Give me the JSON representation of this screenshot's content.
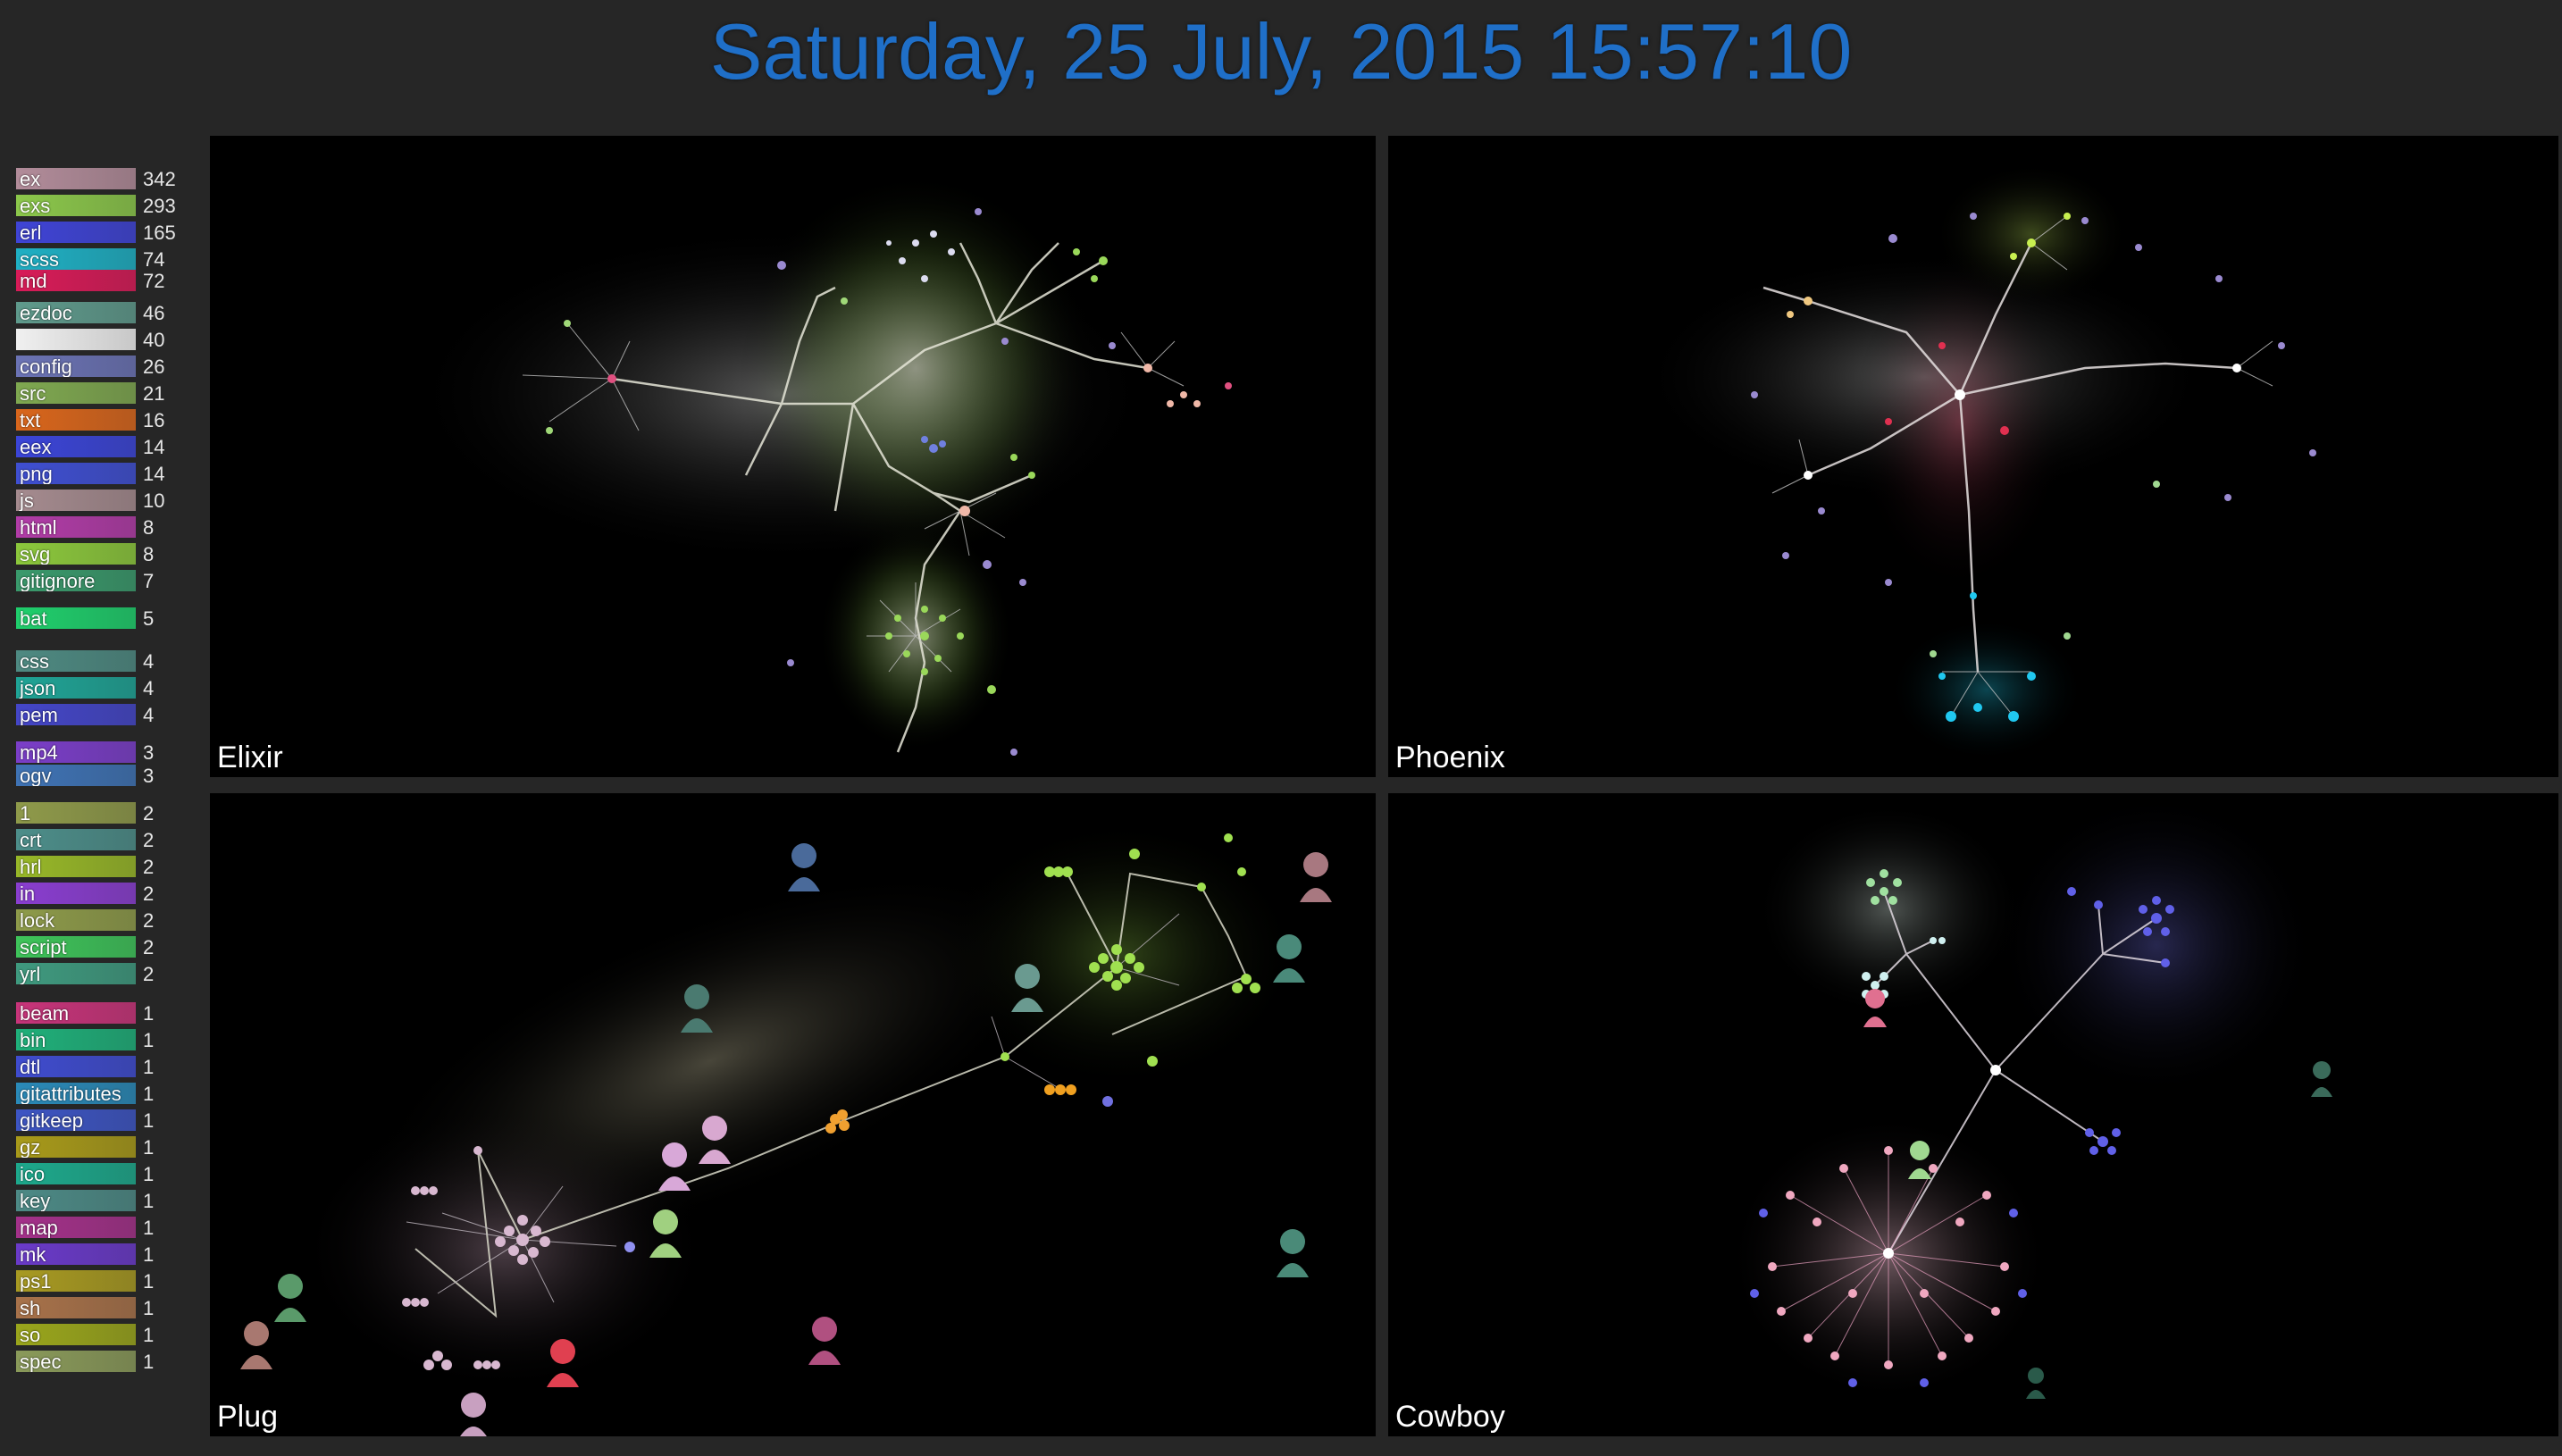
{
  "header": {
    "datetime": "Saturday, 25 July, 2015 15:57:10"
  },
  "colors": {
    "title": "#1f6fc8",
    "background": "#262626",
    "panel": "#000000"
  },
  "legend": [
    {
      "ext": "ex",
      "count": "342",
      "color": "#b28c9a"
    },
    {
      "ext": "exs",
      "count": "293",
      "color": "#8cc84b"
    },
    {
      "ext": "erl",
      "count": "165",
      "color": "#3f44d6"
    },
    {
      "ext": "scss",
      "count": "74",
      "color": "#1fb0c4"
    },
    {
      "ext": "md",
      "count": "72",
      "color": "#d81b58"
    },
    {
      "ext": "ezdoc",
      "count": "46",
      "color": "#5f9a8c"
    },
    {
      "ext": "",
      "count": "40",
      "color": "#f0f0f0"
    },
    {
      "ext": "config",
      "count": "26",
      "color": "#6b73b5"
    },
    {
      "ext": "src",
      "count": "21",
      "color": "#7fa850"
    },
    {
      "ext": "txt",
      "count": "16",
      "color": "#d9661c"
    },
    {
      "ext": "eex",
      "count": "14",
      "color": "#3b45d8"
    },
    {
      "ext": "png",
      "count": "14",
      "color": "#3f4fd2"
    },
    {
      "ext": "js",
      "count": "10",
      "color": "#a58b8f"
    },
    {
      "ext": "html",
      "count": "8",
      "color": "#b23ca8"
    },
    {
      "ext": "svg",
      "count": "8",
      "color": "#8cc83c"
    },
    {
      "ext": "gitignore",
      "count": "7",
      "color": "#3a9a6c"
    },
    {
      "ext": "bat",
      "count": "5",
      "color": "#1fcf6c"
    },
    {
      "ext": "css",
      "count": "4",
      "color": "#4e8a82"
    },
    {
      "ext": "json",
      "count": "4",
      "color": "#1fa496"
    },
    {
      "ext": "pem",
      "count": "4",
      "color": "#4446c8"
    },
    {
      "ext": "mp4",
      "count": "3",
      "color": "#7b3ec9"
    },
    {
      "ext": "ogv",
      "count": "3",
      "color": "#3f73b5"
    },
    {
      "ext": "1",
      "count": "2",
      "color": "#8f9a4a"
    },
    {
      "ext": "crt",
      "count": "2",
      "color": "#4d8e8a"
    },
    {
      "ext": "hrl",
      "count": "2",
      "color": "#98b828"
    },
    {
      "ext": "in",
      "count": "2",
      "color": "#8a3ed0"
    },
    {
      "ext": "lock",
      "count": "2",
      "color": "#8e9b4a"
    },
    {
      "ext": "script",
      "count": "2",
      "color": "#3ec45a"
    },
    {
      "ext": "yrl",
      "count": "2",
      "color": "#3f9a7f"
    },
    {
      "ext": "beam",
      "count": "1",
      "color": "#c8347a"
    },
    {
      "ext": "bin",
      "count": "1",
      "color": "#1fb07a"
    },
    {
      "ext": "dtl",
      "count": "1",
      "color": "#3f4ccf"
    },
    {
      "ext": "gitattributes",
      "count": "1",
      "color": "#2a8ab9"
    },
    {
      "ext": "gitkeep",
      "count": "1",
      "color": "#3d55c4"
    },
    {
      "ext": "gz",
      "count": "1",
      "color": "#a89a1a"
    },
    {
      "ext": "ico",
      "count": "1",
      "color": "#1da98c"
    },
    {
      "ext": "key",
      "count": "1",
      "color": "#4d8a86"
    },
    {
      "ext": "map",
      "count": "1",
      "color": "#a4318a"
    },
    {
      "ext": "mk",
      "count": "1",
      "color": "#6a3ac9"
    },
    {
      "ext": "ps1",
      "count": "1",
      "color": "#a89a22"
    },
    {
      "ext": "sh",
      "count": "1",
      "color": "#a8724a"
    },
    {
      "ext": "so",
      "count": "1",
      "color": "#9aa61c"
    },
    {
      "ext": "spec",
      "count": "1",
      "color": "#8a9a5a"
    }
  ],
  "panels": [
    {
      "name": "Elixir",
      "accent": "#8cc84b"
    },
    {
      "name": "Phoenix",
      "accent": "#e0607a"
    },
    {
      "name": "Plug",
      "accent": "#c8a0c0"
    },
    {
      "name": "Cowboy",
      "accent": "#e06090"
    }
  ]
}
